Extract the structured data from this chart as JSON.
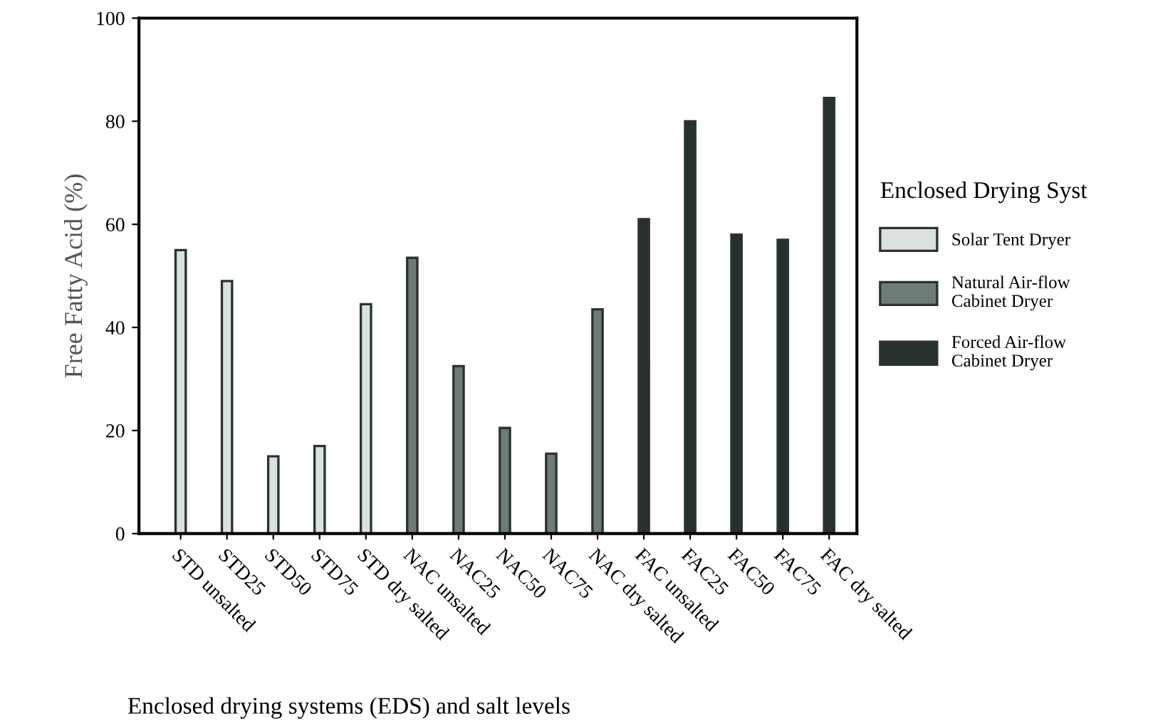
{
  "chart_data": {
    "type": "bar",
    "xlabel": "Enclosed drying systems (EDS) and salt levels",
    "ylabel": "Free Fatty Acid (%)",
    "legend_title": "Enclosed Drying Syst",
    "categories": [
      "STD unsalted",
      "STD25",
      "STD50",
      "STD75",
      "STD dry salted",
      "NAC unsalted",
      "NAC25",
      "NAC50",
      "NAC75",
      "NAC dry salted",
      "FAC unsalted",
      "FAC25",
      "FAC50",
      "FAC75",
      "FAC dry salted"
    ],
    "series": [
      {
        "name": "Solar Tent Dryer",
        "color": "#d9e2de",
        "values": [
          55,
          49,
          15,
          17,
          44.5,
          null,
          null,
          null,
          null,
          null,
          null,
          null,
          null,
          null,
          null
        ]
      },
      {
        "name": "Natural Air-flow\nCabinet Dryer",
        "color": "#6f7b75",
        "values": [
          null,
          null,
          null,
          null,
          null,
          53.5,
          32.5,
          20.5,
          15.5,
          43.5,
          null,
          null,
          null,
          null,
          null
        ]
      },
      {
        "name": "Forced Air-flow\nCabinet Dryer",
        "color": "#27312c",
        "values": [
          null,
          null,
          null,
          null,
          null,
          null,
          null,
          null,
          null,
          null,
          61,
          80,
          58,
          57,
          84.5
        ]
      }
    ],
    "ylim": [
      0,
      100
    ],
    "yticks": [
      0,
      20,
      40,
      60,
      80,
      100
    ],
    "grid": false,
    "legend": "right"
  }
}
